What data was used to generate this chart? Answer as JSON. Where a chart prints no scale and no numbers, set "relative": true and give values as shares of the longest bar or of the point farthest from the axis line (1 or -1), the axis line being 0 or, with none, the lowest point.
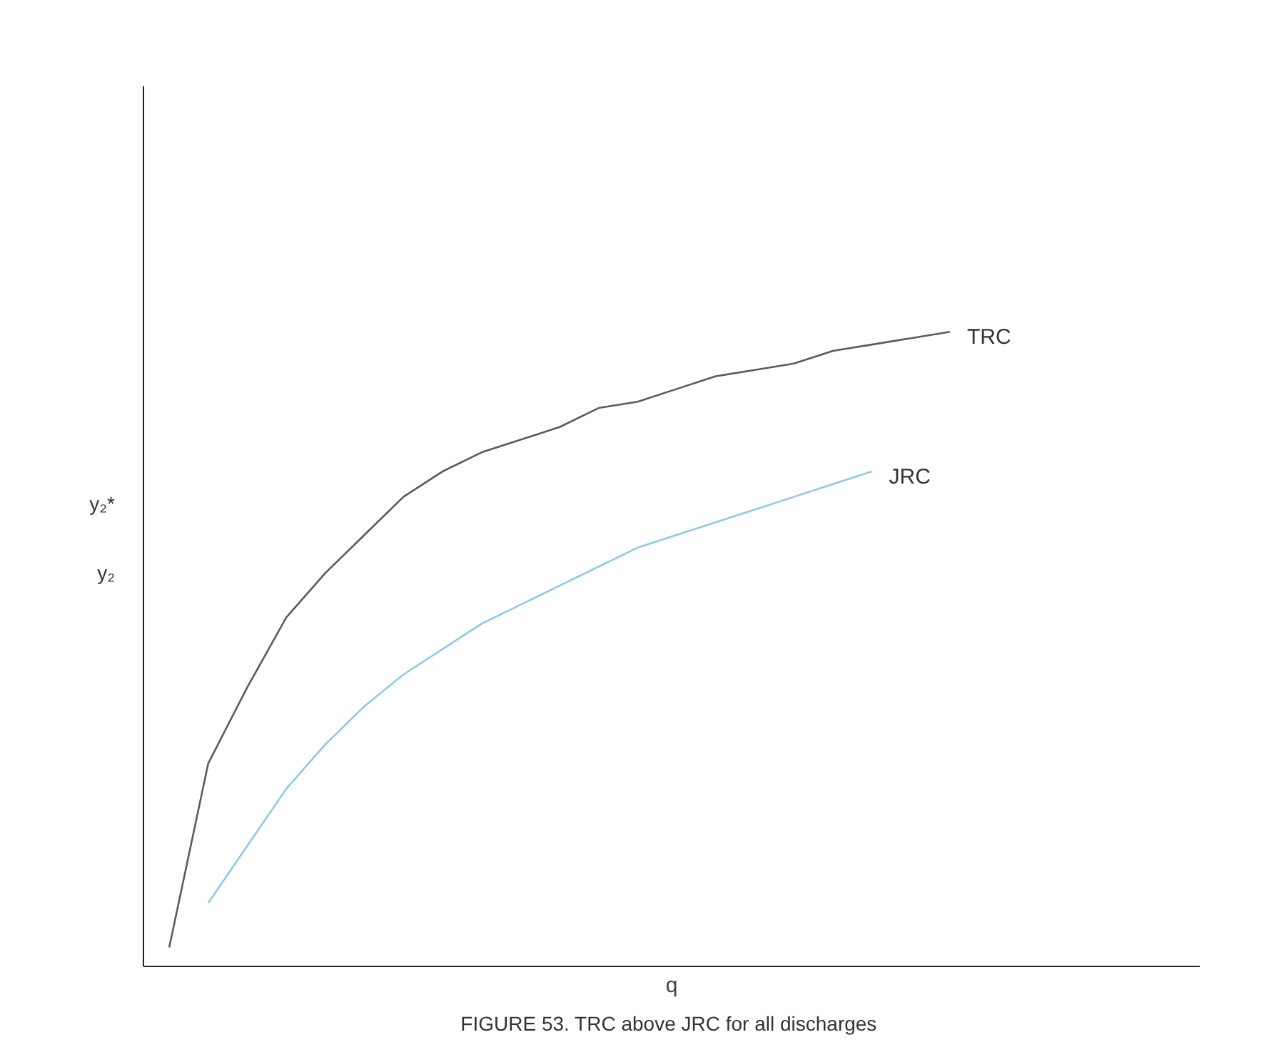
{
  "chart_data": {
    "type": "line",
    "relative": true,
    "title": "FIGURE 53.  TRC above JRC for all discharges",
    "xlabel": "q",
    "categories": [
      null,
      null,
      null,
      null,
      null,
      null,
      null,
      null,
      null,
      null,
      null,
      null,
      null,
      null,
      null,
      null,
      null,
      null,
      null,
      null,
      null
    ],
    "series": [
      {
        "name": "TRC",
        "color": "#5a5a66",
        "values": [
          0.03,
          0.32,
          0.44,
          0.55,
          0.62,
          0.68,
          0.74,
          0.78,
          0.81,
          0.83,
          0.85,
          0.88,
          0.89,
          0.91,
          0.93,
          0.94,
          0.95,
          0.97,
          0.98,
          0.99,
          1.0
        ]
      },
      {
        "name": "JRC",
        "color": "#8ccbe3",
        "values": [
          null,
          0.1,
          0.19,
          0.28,
          0.35,
          0.41,
          0.46,
          0.5,
          0.54,
          0.57,
          0.6,
          0.63,
          0.66,
          0.68,
          0.7,
          0.72,
          0.74,
          0.76,
          0.78,
          null,
          null
        ]
      }
    ],
    "annotations": [
      "y₂*",
      "y₂"
    ],
    "marker": "none",
    "line_style": "solid"
  }
}
